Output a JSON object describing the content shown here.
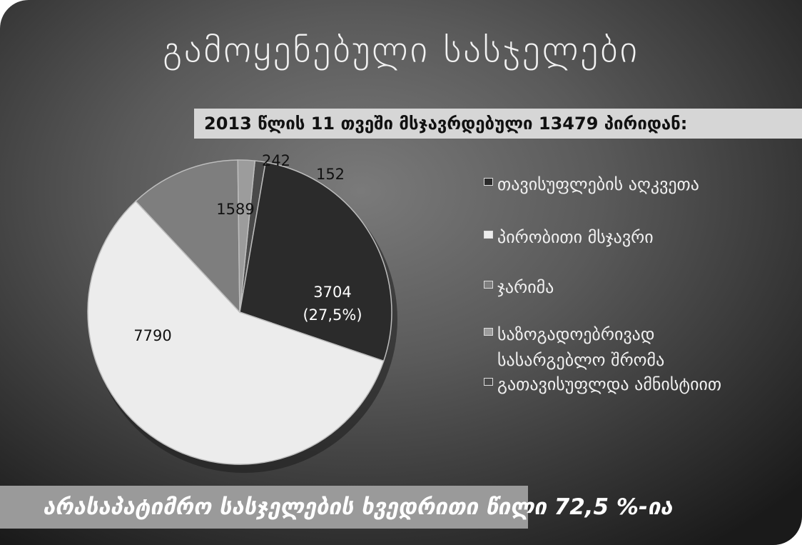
{
  "title": "გამოყენებული სასჯელები",
  "chart_data": {
    "type": "pie",
    "subtitle": "2013 წლის 11 თვეში მსჯავრდებული 13479 პირიდან:",
    "slices": [
      {
        "name": "თავისუფლების აღკვეთა",
        "value": 3704,
        "label": "3704",
        "pct_label": "(27,5%)",
        "color": "#2b2b2b"
      },
      {
        "name": "პირობითი მსჯავრი",
        "value": 7790,
        "label": "7790",
        "color": "#ececec"
      },
      {
        "name": "ჯარიმა",
        "value": 1589,
        "label": "1589",
        "color": "#7e7e7e"
      },
      {
        "name": "საზოგადოებრივად სასარგებლო შრომა",
        "value": 242,
        "label": "242",
        "color": "#9c9c9c"
      },
      {
        "name": "გათავისუფლდა ამნისტიით",
        "value": 152,
        "label": "152",
        "color": "#4a4a4a"
      }
    ],
    "legend": {
      "position": "right",
      "items": [
        {
          "lines": [
            "თავისუფლების აღკვეთა"
          ]
        },
        {
          "lines": [
            "პირობითი მსჯავრი"
          ]
        },
        {
          "lines": [
            "ჯარიმა"
          ]
        },
        {
          "lines": [
            "საზოგადოებრივად",
            "სასარგებლო შრომა"
          ]
        },
        {
          "lines": [
            "გათავისუფლდა ამნისტიით"
          ]
        }
      ]
    }
  },
  "footer": "არასაპატიმრო სასჯელების ხვედრითი წილი 72,5 %-ია"
}
